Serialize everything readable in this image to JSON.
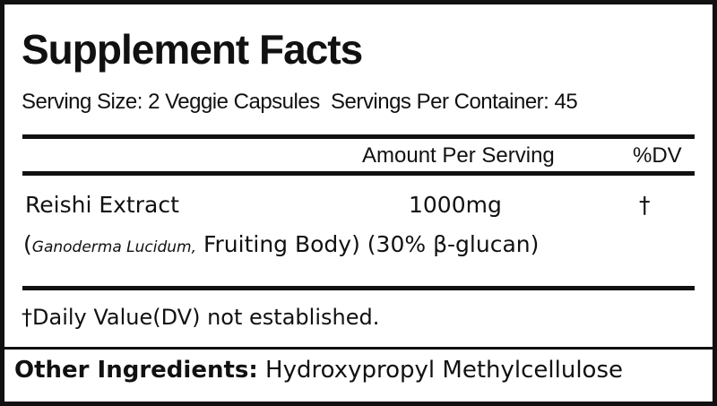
{
  "title": "Supplement Facts",
  "serving_line": "Serving Size: 2 Veggie Capsules  Servings Per Container: 45",
  "header": {
    "amount_per_serving": "Amount Per Serving",
    "dv": "%DV"
  },
  "ingredients": [
    {
      "name": "Reishi Extract",
      "amount": "1000mg",
      "dv": "†",
      "detail_open": "(",
      "detail_italic": "Ganoderma Lucidum,",
      "detail_rest": " Fruiting Body) (30% β-glucan)"
    }
  ],
  "footnote": "†Daily Value(DV) not established.",
  "other_ingredients": {
    "label": "Other Ingredients:",
    "value": " Hydroxypropyl Methylcellulose"
  }
}
